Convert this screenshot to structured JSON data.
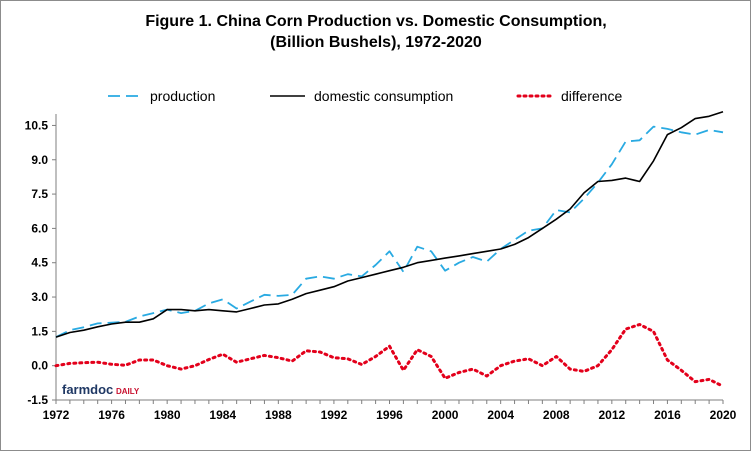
{
  "branding": {
    "logo_main": "farmdoc",
    "logo_sub": "DAILY"
  },
  "chart_data": {
    "type": "line",
    "title": "Figure 1.  China Corn Production vs. Domestic Consumption,",
    "subtitle": "(Billion Bushels), 1972-2020",
    "xlabel": "",
    "ylabel": "",
    "xlim": [
      1972,
      2020
    ],
    "ylim": [
      -1.5,
      11
    ],
    "x_ticks": [
      "1972",
      "1976",
      "1980",
      "1984",
      "1988",
      "1992",
      "1996",
      "2000",
      "2004",
      "2008",
      "2012",
      "2016",
      "2020"
    ],
    "y_ticks": [
      "10.5",
      "9.0",
      "7.5",
      "6.0",
      "4.5",
      "3.0",
      "1.5",
      "0.0",
      "-1.5"
    ],
    "grid": false,
    "legend_position": "top",
    "x": [
      1972,
      1973,
      1974,
      1975,
      1976,
      1977,
      1978,
      1979,
      1980,
      1981,
      1982,
      1983,
      1984,
      1985,
      1986,
      1987,
      1988,
      1989,
      1990,
      1991,
      1992,
      1993,
      1994,
      1995,
      1996,
      1997,
      1998,
      1999,
      2000,
      2001,
      2002,
      2003,
      2004,
      2005,
      2006,
      2007,
      2008,
      2009,
      2010,
      2011,
      2012,
      2013,
      2014,
      2015,
      2016,
      2017,
      2018,
      2019,
      2020
    ],
    "series": [
      {
        "name": "production",
        "color": "#29aae2",
        "style": "dashed",
        "values": [
          1.25,
          1.55,
          1.68,
          1.85,
          1.88,
          1.92,
          2.15,
          2.3,
          2.45,
          2.3,
          2.4,
          2.72,
          2.9,
          2.5,
          2.8,
          3.1,
          3.05,
          3.1,
          3.8,
          3.9,
          3.8,
          4.0,
          3.9,
          4.4,
          5.0,
          4.1,
          5.2,
          5.0,
          4.15,
          4.5,
          4.75,
          4.55,
          5.1,
          5.5,
          5.9,
          6.0,
          6.8,
          6.7,
          7.3,
          8.0,
          8.8,
          9.8,
          9.85,
          10.45,
          10.35,
          10.2,
          10.1,
          10.3,
          10.2
        ]
      },
      {
        "name": "domestic consumption",
        "color": "#000000",
        "style": "solid",
        "values": [
          1.25,
          1.45,
          1.55,
          1.7,
          1.82,
          1.9,
          1.9,
          2.05,
          2.45,
          2.45,
          2.4,
          2.45,
          2.4,
          2.35,
          2.5,
          2.65,
          2.7,
          2.9,
          3.15,
          3.3,
          3.45,
          3.7,
          3.85,
          4.0,
          4.15,
          4.3,
          4.5,
          4.6,
          4.7,
          4.8,
          4.9,
          5.0,
          5.1,
          5.3,
          5.6,
          6.0,
          6.4,
          6.85,
          7.55,
          8.05,
          8.1,
          8.2,
          8.05,
          8.95,
          10.1,
          10.4,
          10.8,
          10.9,
          11.1
        ]
      },
      {
        "name": "difference",
        "color": "#e3001b",
        "style": "dotted",
        "values": [
          0.0,
          0.1,
          0.13,
          0.15,
          0.06,
          0.02,
          0.25,
          0.25,
          0.0,
          -0.15,
          0.0,
          0.27,
          0.5,
          0.15,
          0.3,
          0.45,
          0.35,
          0.2,
          0.65,
          0.6,
          0.35,
          0.3,
          0.05,
          0.4,
          0.85,
          -0.2,
          0.7,
          0.4,
          -0.55,
          -0.3,
          -0.15,
          -0.45,
          0.0,
          0.2,
          0.3,
          0.0,
          0.4,
          -0.15,
          -0.25,
          0.0,
          0.7,
          1.6,
          1.8,
          1.5,
          0.25,
          -0.2,
          -0.7,
          -0.6,
          -0.9
        ]
      }
    ]
  }
}
